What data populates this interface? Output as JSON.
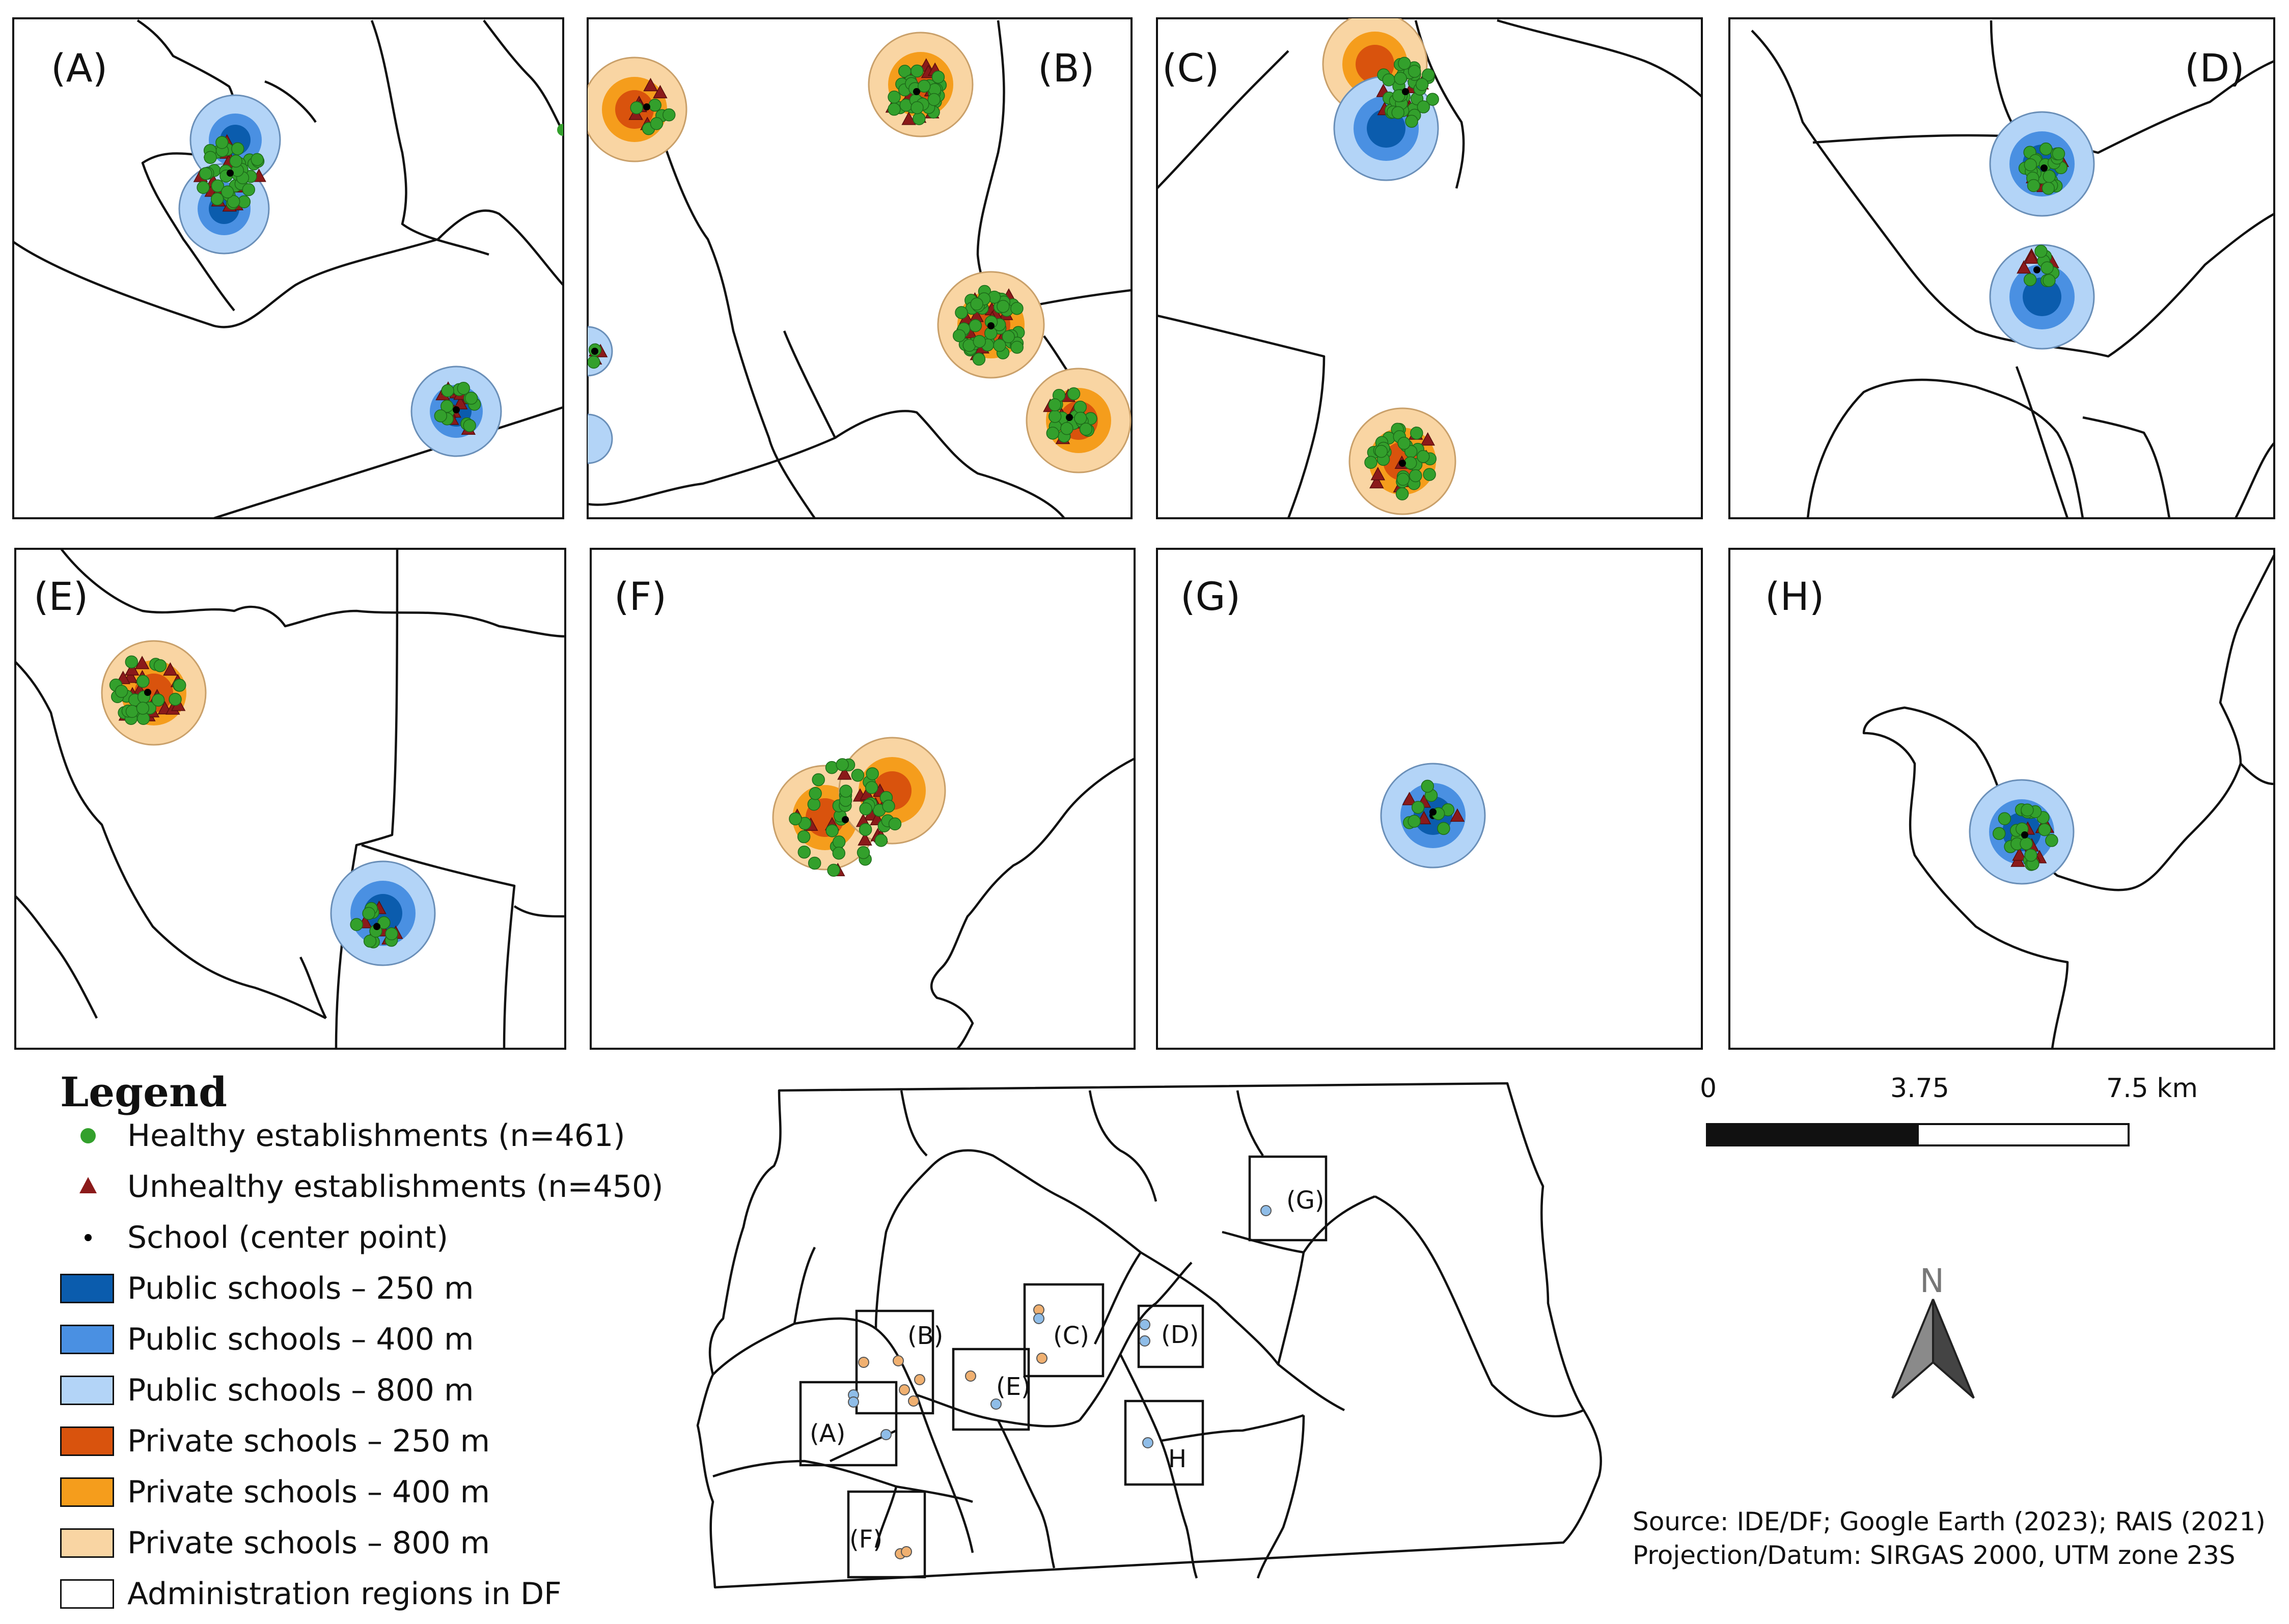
{
  "panels": [
    "(A)",
    "(B)",
    "(C)",
    "(D)",
    "(E)",
    "(F)",
    "(G)",
    "(H)"
  ],
  "legend": {
    "title": "Legend",
    "items": [
      {
        "label": "Healthy establishments (n=461)",
        "symbol": "green-circle",
        "color": "#33a02c"
      },
      {
        "label": "Unhealthy establishments (n=450)",
        "symbol": "red-triangle",
        "color": "#8b1a1a"
      },
      {
        "label": "School (center point)",
        "symbol": "black-dot",
        "color": "#000000"
      },
      {
        "label": "Public schools – 250 m",
        "symbol": "fill",
        "color": "#0b5cad"
      },
      {
        "label": "Public schools – 400 m",
        "symbol": "fill",
        "color": "#4a90e2"
      },
      {
        "label": "Public schools – 800 m",
        "symbol": "fill",
        "color": "#b3d4f7"
      },
      {
        "label": "Private schools – 250 m",
        "symbol": "fill",
        "color": "#d9530d"
      },
      {
        "label": "Private schools – 400 m",
        "symbol": "fill",
        "color": "#f59d1c"
      },
      {
        "label": "Private schools – 800 m",
        "symbol": "fill",
        "color": "#f9d5a3"
      },
      {
        "label": "Administration regions in DF",
        "symbol": "outline",
        "color": "#ffffff"
      }
    ]
  },
  "scale_bar": {
    "ticks": [
      "0",
      "3.75",
      "7.5 km"
    ]
  },
  "north_arrow": {
    "label": "N"
  },
  "inset_labels": [
    "(A)",
    "(B)",
    "(C)",
    "(D)",
    "(E)",
    "(F)",
    "(G)",
    "H"
  ],
  "source": {
    "line1": "Source: IDE/DF; Google Earth (2023); RAIS (2021)",
    "line2": "Projection/Datum: SIRGAS 2000, UTM zone 23S"
  }
}
